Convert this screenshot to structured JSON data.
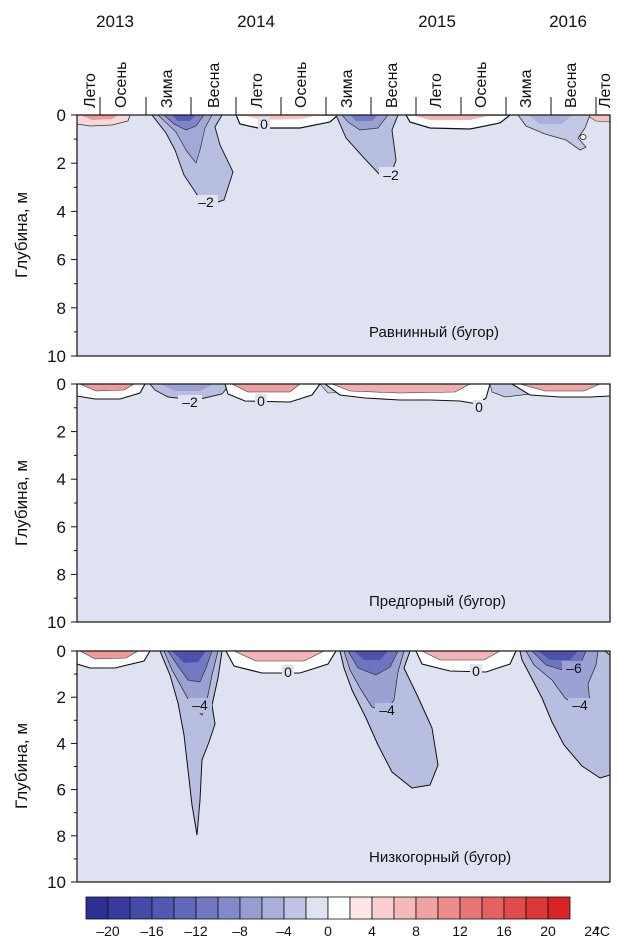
{
  "years": [
    "2013",
    "2014",
    "2015",
    "2016"
  ],
  "seasons": [
    "Лето",
    "Осень",
    "Зима",
    "Весна",
    "Лето",
    "Осень",
    "Зима",
    "Весна",
    "Лето",
    "Осень",
    "Зима",
    "Весна",
    "Лето"
  ],
  "chart_data": [
    {
      "type": "heatmap",
      "panel_label": "Равнинный (бугор)",
      "ylabel": "Глубина, м",
      "ylim": [
        0,
        10
      ],
      "y_ticks": [
        "0",
        "2",
        "4",
        "6",
        "8",
        "10"
      ],
      "x_ticks": [
        "Лето",
        "Осень",
        "Зима",
        "Весна",
        "Лето",
        "Осень",
        "Зима",
        "Весна",
        "Лето",
        "Осень",
        "Зима",
        "Весна",
        "Лето"
      ],
      "contour_labels": [
        "0",
        "–2",
        "–2"
      ],
      "background_color": "#dfe2f0",
      "cold_color": "#b8bedf"
    },
    {
      "type": "heatmap",
      "panel_label": "Предгорный (бугор)",
      "ylabel": "Глубина, м",
      "ylim": [
        0,
        10
      ],
      "y_ticks": [
        "0",
        "2",
        "4",
        "6",
        "8",
        "10"
      ],
      "contour_labels": [
        "–2",
        "0",
        "0"
      ],
      "background_color": "#dfe2f0"
    },
    {
      "type": "heatmap",
      "panel_label": "Низкогорный (бугор)",
      "ylabel": "Глубина, м",
      "ylim": [
        0,
        10
      ],
      "y_ticks": [
        "0",
        "2",
        "4",
        "6",
        "8",
        "10"
      ],
      "contour_labels": [
        "0",
        "0",
        "–4",
        "–4",
        "–6",
        "–4"
      ],
      "background_color": "#dfe2f0",
      "cold_color": "#b8bedf"
    }
  ],
  "colorbar": {
    "unit": "°C",
    "tick_labels": [
      "–20",
      "–16",
      "–12",
      "–8",
      "–4",
      "0",
      "4",
      "8",
      "12",
      "16",
      "20",
      "24"
    ],
    "colors": [
      "#2e2f95",
      "#383a9e",
      "#4549a8",
      "#5358b1",
      "#6268b9",
      "#7178c1",
      "#838ac9",
      "#979dd1",
      "#abb0da",
      "#c0c4e4",
      "#dfe2f0",
      "#ffffff",
      "#fde6e6",
      "#f9cfcf",
      "#f5b9b9",
      "#f0a2a2",
      "#ec8c8c",
      "#e87676",
      "#e46161",
      "#e04c4c",
      "#dc3838",
      "#d82424"
    ]
  }
}
